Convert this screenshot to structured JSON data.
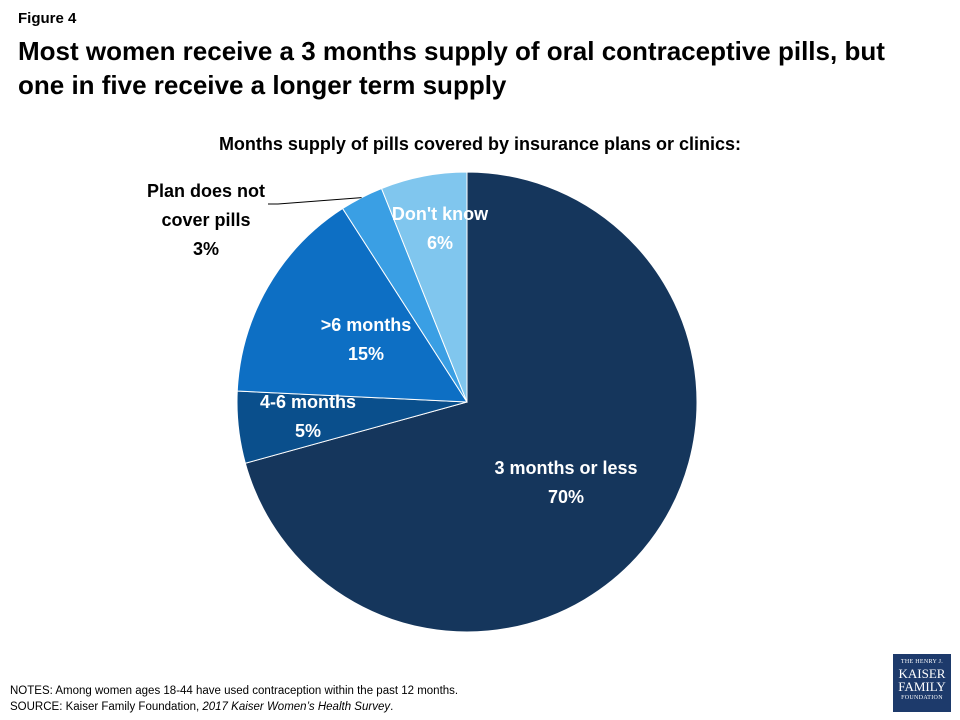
{
  "figure_label": "Figure 4",
  "title": "Most women receive a 3 months supply of oral contraceptive pills, but one in five receive a longer term supply",
  "subtitle": "Months supply of pills covered by insurance plans or clinics:",
  "notes_line": "NOTES:  Among  women  ages 18-44 have used contraception within the past 12 months.",
  "source_prefix": "SOURCE:  Kaiser Family Foundation, ",
  "source_italic": "2017 Kaiser Women’s Health Survey",
  "source_suffix": ".",
  "logo": {
    "line1": "THE HENRY J.",
    "line2": "KAISER",
    "line3": "FAMILY",
    "line4": "FOUNDATION"
  },
  "chart_data": {
    "type": "pie",
    "start": "12 o'clock",
    "direction": "clockwise",
    "slices": [
      {
        "label": "3 months or less",
        "value": 70,
        "value_label": "70%",
        "color": "#15365c"
      },
      {
        "label": "4-6 months",
        "value": 5,
        "value_label": "5%",
        "color": "#0a4f8c"
      },
      {
        "label": ">6 months",
        "value": 15,
        "value_label": "15%",
        "color": "#0d6fc4"
      },
      {
        "label": "Plan does not cover pills",
        "value": 3,
        "value_label": "3%",
        "color": "#3a9fe4"
      },
      {
        "label": "Don't know",
        "value": 6,
        "value_label": "6%",
        "color": "#80c6ee"
      }
    ]
  }
}
